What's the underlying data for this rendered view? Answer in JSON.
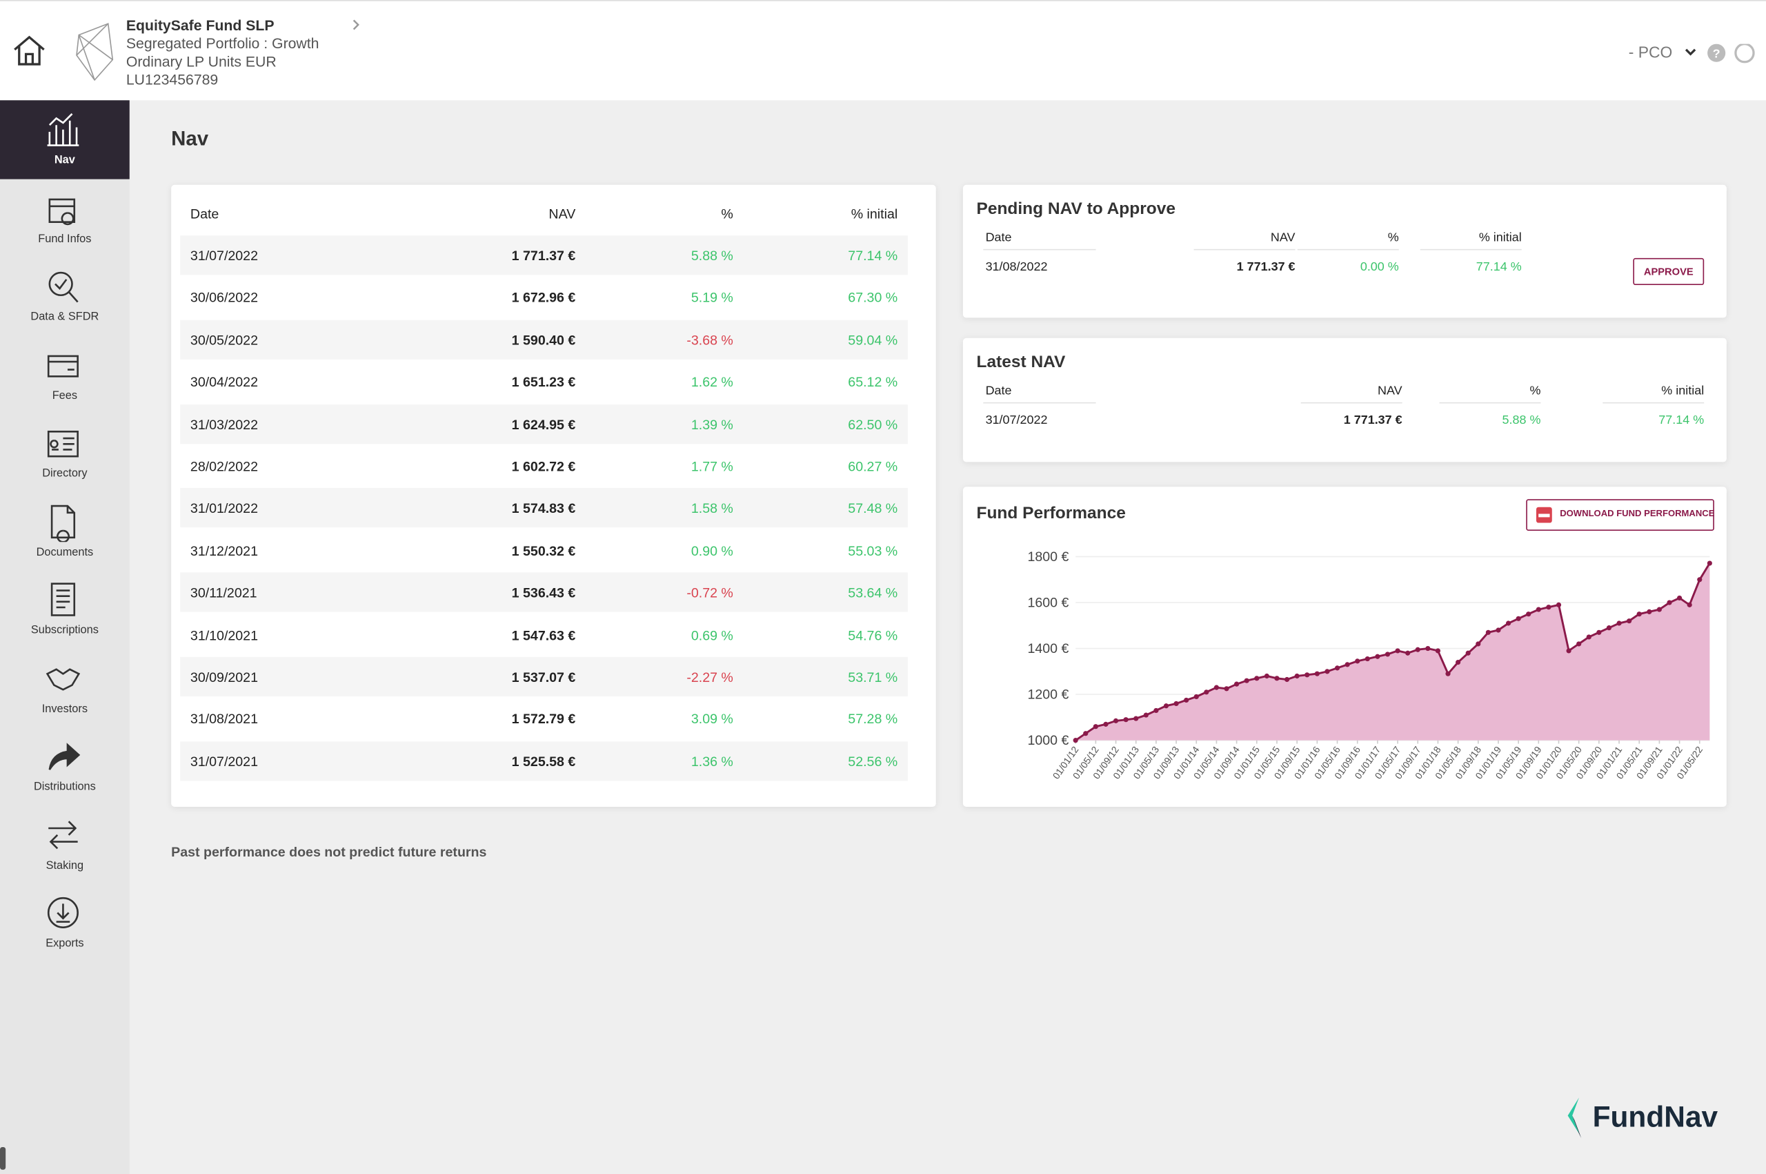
{
  "header": {
    "fund_name": "EquitySafe Fund SLP",
    "lines": [
      "Segregated Portfolio : Growth",
      "Ordinary LP Units EUR",
      "LU123456789"
    ],
    "user": "- PCO"
  },
  "sidebar": {
    "items": [
      "Nav",
      "Fund Infos",
      "Data & SFDR",
      "Fees",
      "Directory",
      "Documents",
      "Subscriptions",
      "Investors",
      "Distributions",
      "Staking",
      "Exports"
    ],
    "active": 0
  },
  "page_title": "Nav",
  "nav_table": {
    "columns": [
      "Date",
      "NAV",
      "%",
      "% initial"
    ],
    "rows": [
      [
        "31/07/2022",
        "1 771.37 €",
        "5.88 %",
        "77.14 %"
      ],
      [
        "30/06/2022",
        "1 672.96 €",
        "5.19 %",
        "67.30 %"
      ],
      [
        "30/05/2022",
        "1 590.40 €",
        "-3.68 %",
        "59.04 %"
      ],
      [
        "30/04/2022",
        "1 651.23 €",
        "1.62 %",
        "65.12 %"
      ],
      [
        "31/03/2022",
        "1 624.95 €",
        "1.39 %",
        "62.50 %"
      ],
      [
        "28/02/2022",
        "1 602.72 €",
        "1.77 %",
        "60.27 %"
      ],
      [
        "31/01/2022",
        "1 574.83 €",
        "1.58 %",
        "57.48 %"
      ],
      [
        "31/12/2021",
        "1 550.32 €",
        "0.90 %",
        "55.03 %"
      ],
      [
        "30/11/2021",
        "1 536.43 €",
        "-0.72 %",
        "53.64 %"
      ],
      [
        "31/10/2021",
        "1 547.63 €",
        "0.69 %",
        "54.76 %"
      ],
      [
        "30/09/2021",
        "1 537.07 €",
        "-2.27 %",
        "53.71 %"
      ],
      [
        "31/08/2021",
        "1 572.79 €",
        "3.09 %",
        "57.28 %"
      ],
      [
        "31/07/2021",
        "1 525.58 €",
        "1.36 %",
        "52.56 %"
      ]
    ]
  },
  "pending": {
    "title": "Pending NAV to Approve",
    "columns": [
      "Date",
      "NAV",
      "%",
      "% initial"
    ],
    "rows": [
      [
        "31/08/2022",
        "1 771.37 €",
        "0.00 %",
        "77.14 %"
      ]
    ],
    "action": "APPROVE"
  },
  "latest": {
    "title": "Latest NAV",
    "columns": [
      "Date",
      "NAV",
      "%",
      "% initial"
    ],
    "rows": [
      [
        "31/07/2022",
        "1 771.37 €",
        "5.88 %",
        "77.14 %"
      ]
    ]
  },
  "fund_performance": {
    "title": "Fund Performance",
    "download": "DOWNLOAD FUND PERFORMANCE"
  },
  "chart_data": {
    "type": "area",
    "color": "#8b1a4a",
    "fill": "#e9b8d2",
    "grid": true,
    "categories": [
      "01/01/12",
      null,
      "01/05/12",
      null,
      "01/09/12",
      null,
      "01/01/13",
      null,
      "01/05/13",
      null,
      "01/09/13",
      null,
      "01/01/14",
      null,
      "01/05/14",
      null,
      "01/09/14",
      null,
      "01/01/15",
      null,
      "01/05/15",
      null,
      "01/09/15",
      null,
      "01/01/16",
      null,
      "01/05/16",
      null,
      "01/09/16",
      null,
      "01/01/17",
      null,
      "01/05/17",
      null,
      "01/09/17",
      null,
      "01/01/18",
      null,
      "01/05/18",
      null,
      "01/09/18",
      null,
      "01/01/19",
      null,
      "01/05/19",
      null,
      "01/09/19",
      null,
      "01/01/20",
      null,
      "01/05/20",
      null,
      "01/09/20",
      null,
      "01/01/21",
      null,
      "01/05/21",
      null,
      "01/09/21",
      null,
      "01/01/22",
      null,
      "01/05/22",
      null
    ],
    "values": [
      1000,
      1030,
      1060,
      1070,
      1085,
      1090,
      1095,
      1110,
      1130,
      1150,
      1160,
      1175,
      1190,
      1210,
      1230,
      1225,
      1245,
      1260,
      1270,
      1280,
      1270,
      1265,
      1280,
      1285,
      1290,
      1300,
      1315,
      1330,
      1345,
      1355,
      1365,
      1375,
      1390,
      1380,
      1395,
      1400,
      1390,
      1290,
      1340,
      1380,
      1420,
      1470,
      1480,
      1510,
      1530,
      1550,
      1570,
      1580,
      1590,
      1390,
      1420,
      1450,
      1470,
      1490,
      1510,
      1520,
      1550,
      1560,
      1570,
      1600,
      1620,
      1590,
      1700,
      1771.37
    ],
    "ylim": [
      1000,
      1800
    ],
    "yticks": [
      {
        "value": 1000,
        "label": "1000 €"
      },
      {
        "value": 1200,
        "label": "1200 €"
      },
      {
        "value": 1400,
        "label": "1400 €"
      },
      {
        "value": 1600,
        "label": "1600 €"
      },
      {
        "value": 1800,
        "label": "1800 €"
      }
    ]
  },
  "disclaimer": "Past performance does not predict future returns",
  "brand": "FundNav"
}
